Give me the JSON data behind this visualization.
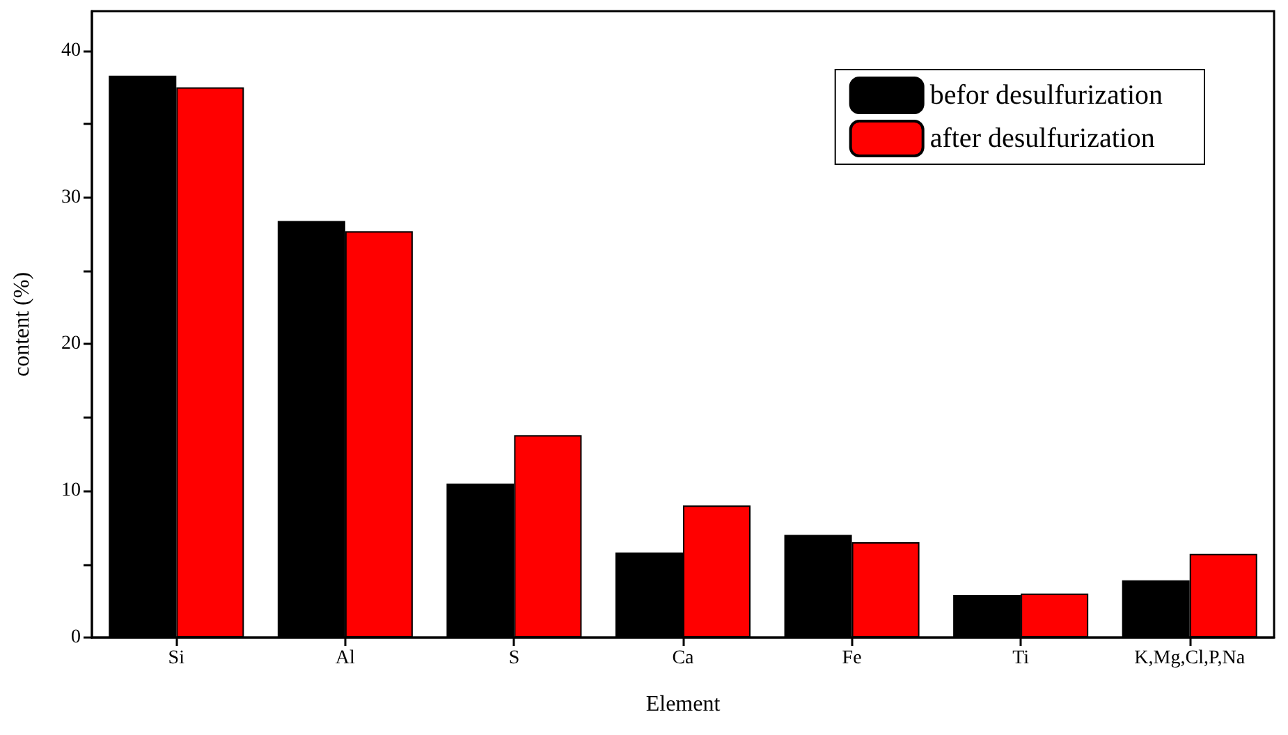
{
  "chart_data": {
    "type": "bar",
    "xlabel": "Element",
    "ylabel": "content (%)",
    "categories": [
      "Si",
      "Al",
      "S",
      "Ca",
      "Fe",
      "Ti",
      "K,Mg,Cl,P,Na"
    ],
    "series": [
      {
        "name": "befor desulfurization",
        "color": "#000000",
        "values": [
          38.3,
          28.4,
          10.5,
          5.8,
          7.0,
          2.9,
          3.9
        ]
      },
      {
        "name": "after desulfurization",
        "color": "#ff0000",
        "values": [
          37.5,
          27.7,
          13.8,
          9.0,
          6.5,
          3.0,
          5.7
        ]
      }
    ],
    "ylim": [
      0,
      42.7
    ],
    "yticks": [
      0,
      {
        "value": 5,
        "label": null
      },
      10,
      {
        "value": 15,
        "label": null
      },
      20,
      {
        "value": 25,
        "label": null
      },
      30,
      {
        "value": 35,
        "label": null
      },
      40
    ],
    "grid": false,
    "legend": "top right"
  }
}
